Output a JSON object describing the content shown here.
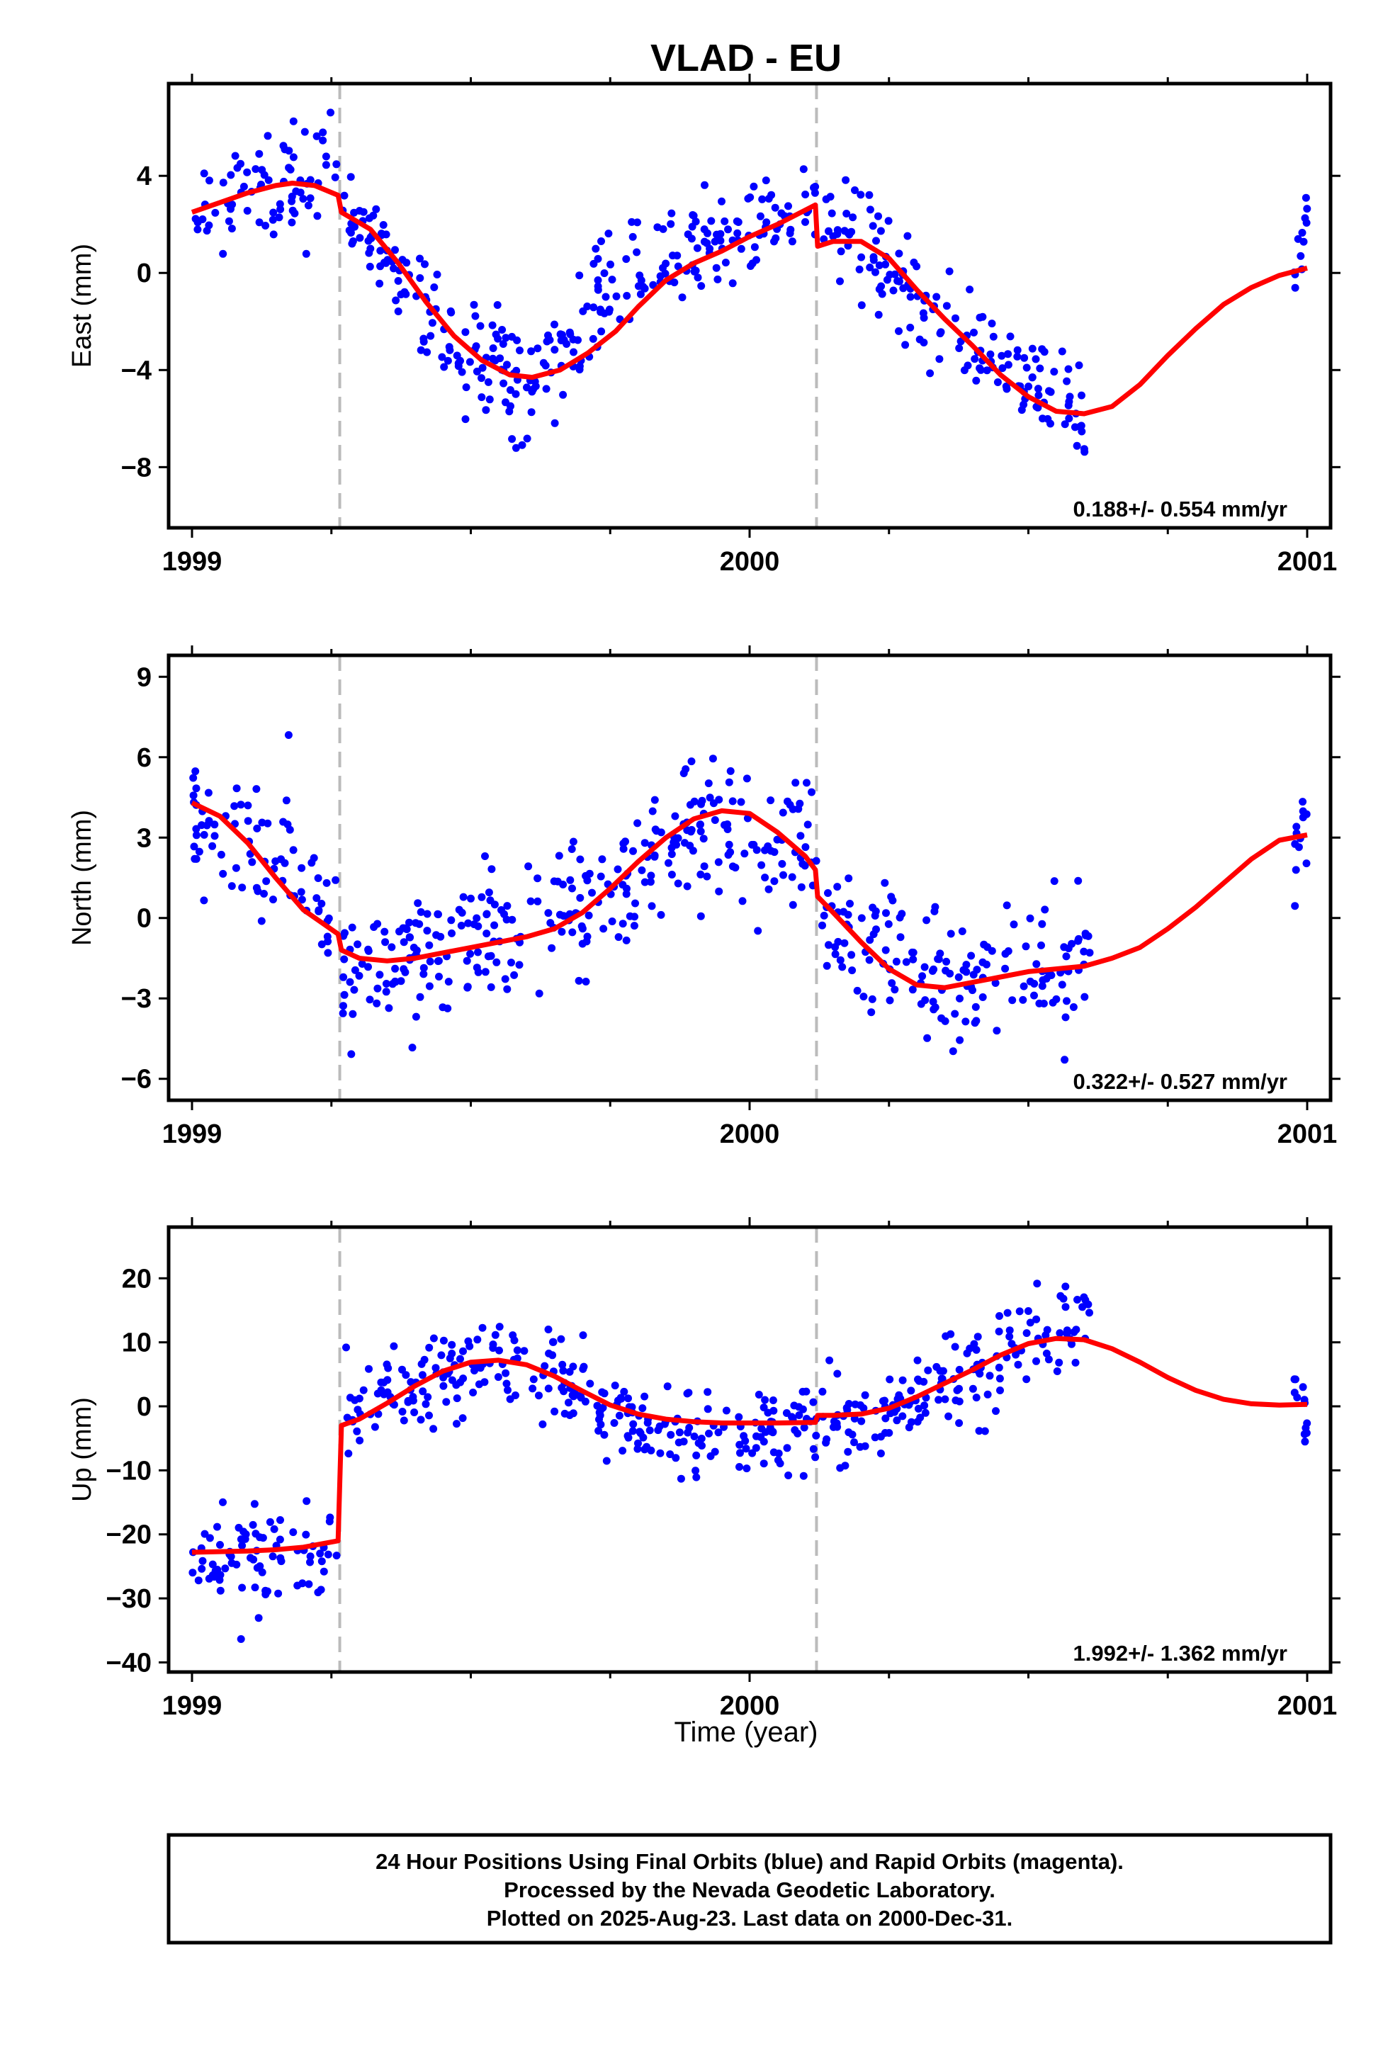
{
  "chart_data": {
    "type": "scatter",
    "title": "VLAD - EU",
    "x_label": "Time (year)",
    "x_range": [
      1999.0,
      2001.0
    ],
    "x_ticks": [
      "1999",
      "2000",
      "2001"
    ],
    "offset_lines": [
      1999.265,
      2000.12
    ],
    "grid": false,
    "colors": {
      "points": "#0000ff",
      "model": "#ff0000",
      "offset_line": "#bbbbbb",
      "frame": "#000000"
    },
    "panels": [
      {
        "name": "east",
        "ylabel": "East (mm)",
        "ylim": [
          -10.5,
          7.8
        ],
        "yticks": [
          4,
          0,
          -4,
          -8
        ],
        "rate": "0.188+/- 0.554 mm/yr",
        "model": [
          [
            1999.0,
            2.5
          ],
          [
            1999.05,
            2.9
          ],
          [
            1999.1,
            3.3
          ],
          [
            1999.15,
            3.6
          ],
          [
            1999.18,
            3.7
          ],
          [
            1999.22,
            3.6
          ],
          [
            1999.262,
            3.2
          ],
          [
            1999.268,
            2.5
          ],
          [
            1999.32,
            1.8
          ],
          [
            1999.37,
            0.4
          ],
          [
            1999.42,
            -1.2
          ],
          [
            1999.47,
            -2.6
          ],
          [
            1999.52,
            -3.6
          ],
          [
            1999.57,
            -4.2
          ],
          [
            1999.61,
            -4.3
          ],
          [
            1999.66,
            -4.0
          ],
          [
            1999.71,
            -3.3
          ],
          [
            1999.76,
            -2.4
          ],
          [
            1999.8,
            -1.4
          ],
          [
            1999.85,
            -0.3
          ],
          [
            1999.9,
            0.4
          ],
          [
            1999.95,
            0.9
          ],
          [
            2000.0,
            1.5
          ],
          [
            2000.05,
            2.0
          ],
          [
            2000.118,
            2.8
          ],
          [
            2000.122,
            1.1
          ],
          [
            2000.15,
            1.3
          ],
          [
            2000.2,
            1.3
          ],
          [
            2000.25,
            0.6
          ],
          [
            2000.3,
            -0.7
          ],
          [
            2000.35,
            -1.9
          ],
          [
            2000.4,
            -3.0
          ],
          [
            2000.45,
            -4.2
          ],
          [
            2000.5,
            -5.1
          ],
          [
            2000.55,
            -5.7
          ],
          [
            2000.6,
            -5.8
          ],
          [
            2000.65,
            -5.5
          ],
          [
            2000.7,
            -4.6
          ],
          [
            2000.75,
            -3.4
          ],
          [
            2000.8,
            -2.3
          ],
          [
            2000.85,
            -1.3
          ],
          [
            2000.9,
            -0.6
          ],
          [
            2000.95,
            -0.1
          ],
          [
            2001.0,
            0.2
          ]
        ],
        "series_segments": [
          {
            "t0": 1999.0,
            "t1": 1999.26,
            "y0": 2.5,
            "y1": 4.6,
            "spread": 1.5,
            "n": 75
          },
          {
            "t0": 1999.27,
            "t1": 1999.4,
            "y0": 3.0,
            "y1": -0.8,
            "spread": 1.2,
            "n": 50
          },
          {
            "t0": 1999.4,
            "t1": 1999.62,
            "y0": -1.8,
            "y1": -4.8,
            "spread": 1.7,
            "n": 85
          },
          {
            "t0": 1999.62,
            "t1": 1999.8,
            "y0": -4.5,
            "y1": 1.0,
            "spread": 1.8,
            "n": 60
          },
          {
            "t0": 1999.8,
            "t1": 2000.12,
            "y0": 0.0,
            "y1": 2.5,
            "spread": 1.3,
            "n": 100
          },
          {
            "t0": 2000.13,
            "t1": 2000.3,
            "y0": 2.0,
            "y1": -1.0,
            "spread": 1.6,
            "n": 60
          },
          {
            "t0": 2000.3,
            "t1": 2000.61,
            "y0": -1.5,
            "y1": -6.0,
            "spread": 1.4,
            "n": 95
          },
          {
            "t0": 2000.975,
            "t1": 2001.0,
            "y0": -0.5,
            "y1": 2.5,
            "spread": 0.9,
            "n": 12
          }
        ]
      },
      {
        "name": "north",
        "ylabel": "North (mm)",
        "ylim": [
          -6.8,
          9.8
        ],
        "yticks": [
          9,
          6,
          3,
          0,
          -3,
          -6
        ],
        "rate": "0.322+/- 0.527 mm/yr",
        "model": [
          [
            1999.0,
            4.3
          ],
          [
            1999.05,
            3.8
          ],
          [
            1999.1,
            2.8
          ],
          [
            1999.15,
            1.5
          ],
          [
            1999.2,
            0.3
          ],
          [
            1999.262,
            -0.6
          ],
          [
            1999.268,
            -1.2
          ],
          [
            1999.3,
            -1.5
          ],
          [
            1999.35,
            -1.6
          ],
          [
            1999.4,
            -1.5
          ],
          [
            1999.45,
            -1.3
          ],
          [
            1999.5,
            -1.1
          ],
          [
            1999.55,
            -0.9
          ],
          [
            1999.6,
            -0.7
          ],
          [
            1999.65,
            -0.4
          ],
          [
            1999.7,
            0.2
          ],
          [
            1999.75,
            1.1
          ],
          [
            1999.8,
            2.1
          ],
          [
            1999.85,
            3.0
          ],
          [
            1999.9,
            3.7
          ],
          [
            1999.95,
            4.0
          ],
          [
            2000.0,
            3.9
          ],
          [
            2000.05,
            3.2
          ],
          [
            2000.1,
            2.3
          ],
          [
            2000.118,
            1.8
          ],
          [
            2000.122,
            0.8
          ],
          [
            2000.15,
            0.2
          ],
          [
            2000.2,
            -0.9
          ],
          [
            2000.25,
            -1.9
          ],
          [
            2000.3,
            -2.5
          ],
          [
            2000.35,
            -2.6
          ],
          [
            2000.4,
            -2.4
          ],
          [
            2000.45,
            -2.2
          ],
          [
            2000.5,
            -2.0
          ],
          [
            2000.55,
            -1.9
          ],
          [
            2000.6,
            -1.8
          ],
          [
            2000.65,
            -1.5
          ],
          [
            2000.7,
            -1.1
          ],
          [
            2000.75,
            -0.4
          ],
          [
            2000.8,
            0.4
          ],
          [
            2000.85,
            1.3
          ],
          [
            2000.9,
            2.2
          ],
          [
            2000.95,
            2.9
          ],
          [
            2001.0,
            3.1
          ]
        ],
        "series_segments": [
          {
            "t0": 1999.0,
            "t1": 1999.15,
            "y0": 4.0,
            "y1": 2.0,
            "spread": 1.6,
            "n": 50
          },
          {
            "t0": 1999.15,
            "t1": 1999.26,
            "y0": 2.5,
            "y1": 0.0,
            "spread": 1.6,
            "n": 30
          },
          {
            "t0": 1999.27,
            "t1": 1999.5,
            "y0": -2.2,
            "y1": -0.8,
            "spread": 1.6,
            "n": 90
          },
          {
            "t0": 1999.5,
            "t1": 1999.72,
            "y0": -1.0,
            "y1": 0.3,
            "spread": 1.8,
            "n": 75
          },
          {
            "t0": 1999.72,
            "t1": 1999.9,
            "y0": 0.8,
            "y1": 3.5,
            "spread": 1.5,
            "n": 65
          },
          {
            "t0": 1999.9,
            "t1": 2000.12,
            "y0": 3.5,
            "y1": 2.5,
            "spread": 1.9,
            "n": 75
          },
          {
            "t0": 2000.13,
            "t1": 2000.35,
            "y0": 0.0,
            "y1": -2.6,
            "spread": 1.7,
            "n": 75
          },
          {
            "t0": 2000.35,
            "t1": 2000.61,
            "y0": -2.6,
            "y1": -1.5,
            "spread": 1.6,
            "n": 85
          },
          {
            "t0": 2000.975,
            "t1": 2001.0,
            "y0": 2.0,
            "y1": 4.0,
            "spread": 1.2,
            "n": 12
          }
        ]
      },
      {
        "name": "up",
        "ylabel": "Up (mm)",
        "ylim": [
          -41.5,
          28.0
        ],
        "yticks": [
          20,
          10,
          0,
          -10,
          -20,
          -30,
          -40
        ],
        "rate": "1.992+/- 1.362 mm/yr",
        "model": [
          [
            1999.0,
            -22.8
          ],
          [
            1999.05,
            -22.7
          ],
          [
            1999.1,
            -22.6
          ],
          [
            1999.15,
            -22.4
          ],
          [
            1999.2,
            -22.0
          ],
          [
            1999.262,
            -21.0
          ],
          [
            1999.268,
            -3.0
          ],
          [
            1999.3,
            -2.0
          ],
          [
            1999.35,
            0.5
          ],
          [
            1999.4,
            3.2
          ],
          [
            1999.45,
            5.5
          ],
          [
            1999.5,
            6.9
          ],
          [
            1999.55,
            7.2
          ],
          [
            1999.6,
            6.5
          ],
          [
            1999.65,
            4.7
          ],
          [
            1999.7,
            2.4
          ],
          [
            1999.75,
            0.2
          ],
          [
            1999.8,
            -1.2
          ],
          [
            1999.85,
            -2.0
          ],
          [
            1999.9,
            -2.4
          ],
          [
            1999.95,
            -2.6
          ],
          [
            2000.0,
            -2.6
          ],
          [
            2000.05,
            -2.6
          ],
          [
            2000.118,
            -2.5
          ],
          [
            2000.122,
            -1.4
          ],
          [
            2000.15,
            -1.4
          ],
          [
            2000.2,
            -1.2
          ],
          [
            2000.25,
            -0.3
          ],
          [
            2000.3,
            1.5
          ],
          [
            2000.35,
            3.6
          ],
          [
            2000.4,
            5.7
          ],
          [
            2000.45,
            8.0
          ],
          [
            2000.5,
            9.8
          ],
          [
            2000.55,
            10.6
          ],
          [
            2000.6,
            10.4
          ],
          [
            2000.65,
            9.0
          ],
          [
            2000.7,
            6.9
          ],
          [
            2000.75,
            4.5
          ],
          [
            2000.8,
            2.5
          ],
          [
            2000.85,
            1.1
          ],
          [
            2000.9,
            0.4
          ],
          [
            2000.95,
            0.2
          ],
          [
            2001.0,
            0.3
          ]
        ],
        "series_segments": [
          {
            "t0": 1999.0,
            "t1": 1999.26,
            "y0": -24.0,
            "y1": -23.0,
            "spread": 4.5,
            "n": 80
          },
          {
            "t0": 1999.27,
            "t1": 1999.55,
            "y0": -2.0,
            "y1": 8.0,
            "spread": 4.5,
            "n": 95
          },
          {
            "t0": 1999.55,
            "t1": 1999.8,
            "y0": 8.0,
            "y1": -2.0,
            "spread": 4.5,
            "n": 85
          },
          {
            "t0": 1999.8,
            "t1": 2000.12,
            "y0": -3.0,
            "y1": -3.0,
            "spread": 4.2,
            "n": 105
          },
          {
            "t0": 2000.13,
            "t1": 2000.3,
            "y0": -4.0,
            "y1": 2.0,
            "spread": 4.2,
            "n": 60
          },
          {
            "t0": 2000.3,
            "t1": 2000.61,
            "y0": 2.0,
            "y1": 14.0,
            "spread": 4.5,
            "n": 100
          },
          {
            "t0": 2000.975,
            "t1": 2001.0,
            "y0": 3.0,
            "y1": -3.0,
            "spread": 3.0,
            "n": 12
          }
        ]
      }
    ]
  },
  "caption": {
    "line1": "24 Hour Positions Using Final Orbits (blue) and Rapid Orbits (magenta).",
    "line2": "Processed by the Nevada Geodetic Laboratory.",
    "line3": "Plotted on 2025-Aug-23. Last data on 2000-Dec-31."
  }
}
